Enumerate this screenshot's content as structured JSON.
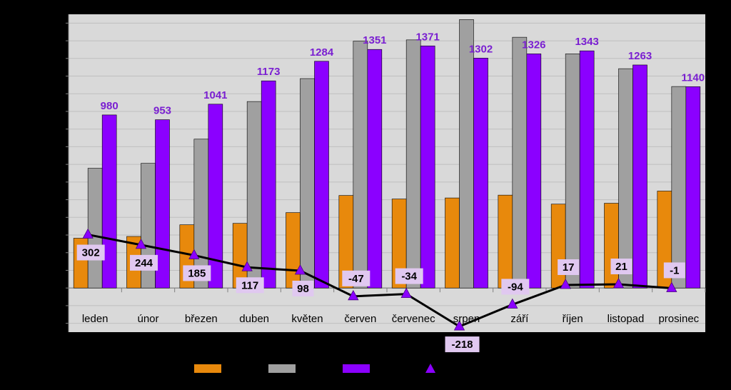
{
  "chart_data": {
    "type": "bar",
    "categories": [
      "leden",
      "únor",
      "březen",
      "duben",
      "květen",
      "červen",
      "červenec",
      "srpen",
      "září",
      "říjen",
      "listopad",
      "prosinec"
    ],
    "series": [
      {
        "kind": "bar",
        "color": "#E8890C",
        "values": [
          282,
          292,
          358,
          366,
          427,
          524,
          504,
          510,
          526,
          475,
          480,
          549
        ]
      },
      {
        "kind": "bar",
        "color": "#A0A0A0",
        "values": [
          678,
          706,
          843,
          1056,
          1186,
          1398,
          1405,
          1520,
          1420,
          1326,
          1242,
          1141
        ]
      },
      {
        "kind": "bar",
        "color": "#8B00FF",
        "values": [
          980,
          953,
          1041,
          1173,
          1284,
          1351,
          1371,
          1302,
          1326,
          1343,
          1263,
          1140
        ],
        "labels": [
          "980",
          "953",
          "1041",
          "1173",
          "1284",
          "1351",
          "1371",
          "1302",
          "1326",
          "1343",
          "1263",
          "1140"
        ]
      },
      {
        "kind": "line",
        "color": "#000000",
        "marker_color": "#8B00FF",
        "values": [
          302,
          244,
          185,
          117,
          98,
          -47,
          -34,
          -218,
          -94,
          17,
          21,
          -1
        ],
        "labels": [
          "302",
          "244",
          "185",
          "117",
          "98",
          "-47",
          "-34",
          "-218",
          "-94",
          "17",
          "21",
          "-1"
        ]
      }
    ],
    "ylim": [
      -250,
      1550
    ],
    "grid": true,
    "legend": "bottom",
    "colors": {
      "plot_bg": "#D9D9D9",
      "background": "#000000",
      "label_box": "#E0C8F0",
      "purple_text": "#7A1FD1"
    }
  }
}
